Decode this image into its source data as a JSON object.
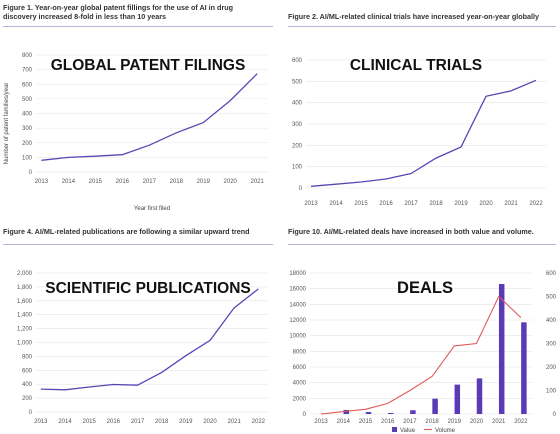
{
  "colors": {
    "line": "#5b45b5",
    "bar": "#5b3bb5",
    "volume": "#e05a5a",
    "grid": "#e4e4e4",
    "rule": "#b9b3d6"
  },
  "chart_data": [
    {
      "id": "patents",
      "type": "line",
      "caption": "Figure 1. Year-on-year global patent fillings for the use of AI in drug discovery increased 8-fold in less than 10 years",
      "overlay_title": "GLOBAL PATENT FILINGS",
      "xlabel": "Year first filed",
      "ylabel": "Number of patent families/year",
      "x": [
        "2013",
        "2014",
        "2015",
        "2016",
        "2017",
        "2018",
        "2019",
        "2020",
        "2021"
      ],
      "values": [
        80,
        100,
        108,
        118,
        183,
        268,
        338,
        488,
        672
      ],
      "ylim": [
        0,
        800
      ],
      "yticks": [
        0,
        100,
        200,
        300,
        400,
        500,
        600,
        700,
        800
      ],
      "grid": true
    },
    {
      "id": "trials",
      "type": "line",
      "caption": "Figure 2. AI/ML-related clinical trials have increased year-on-year globally",
      "overlay_title": "CLINICAL TRIALS",
      "xlabel": "",
      "ylabel": "",
      "x": [
        "2013",
        "2014",
        "2015",
        "2016",
        "2017",
        "2018",
        "2019",
        "2020",
        "2021",
        "2022"
      ],
      "values": [
        8,
        18,
        28,
        42,
        68,
        140,
        192,
        430,
        455,
        505
      ],
      "ylim": [
        0,
        600
      ],
      "yticks": [
        0,
        100,
        200,
        300,
        400,
        500,
        600
      ],
      "grid": true
    },
    {
      "id": "publications",
      "type": "line",
      "caption": "Figure 4. AI/ML-related publications are following a similar upward trend",
      "overlay_title": "SCIENTIFIC PUBLICATIONS",
      "xlabel": "",
      "ylabel": "",
      "x": [
        "2013",
        "2014",
        "2015",
        "2016",
        "2017",
        "2018",
        "2019",
        "2020",
        "2021",
        "2022"
      ],
      "values": [
        330,
        320,
        360,
        395,
        385,
        570,
        810,
        1030,
        1500,
        1770
      ],
      "ylim": [
        0,
        2000
      ],
      "yticks": [
        0,
        200,
        400,
        600,
        800,
        1000,
        1200,
        1400,
        1600,
        1800,
        2000
      ],
      "ytick_labels": [
        "0",
        "200",
        "400",
        "600",
        "800",
        "1,000",
        "1,200",
        "1,400",
        "1,600",
        "1,800",
        "2,000"
      ],
      "grid": true
    },
    {
      "id": "deals",
      "type": "bar+line",
      "caption": "Figure 10. AI/ML-related deals have increased in both value and volume.",
      "overlay_title": "DEALS",
      "x": [
        "2013",
        "2014",
        "2015",
        "2016",
        "2017",
        "2018",
        "2019",
        "2020",
        "2021",
        "2022"
      ],
      "series": [
        {
          "name": "Value",
          "type": "bar",
          "axis": "left",
          "values": [
            80,
            520,
            250,
            130,
            480,
            1950,
            3750,
            4550,
            16600,
            11700
          ]
        },
        {
          "name": "Volume",
          "type": "line",
          "axis": "right",
          "values": [
            0,
            10,
            20,
            45,
            100,
            160,
            290,
            300,
            500,
            410
          ]
        }
      ],
      "ylim_left": [
        0,
        18000
      ],
      "yticks_left": [
        0,
        2000,
        4000,
        6000,
        8000,
        10000,
        12000,
        14000,
        16000,
        18000
      ],
      "ylim_right": [
        0,
        600
      ],
      "yticks_right": [
        0,
        100,
        200,
        300,
        400,
        500,
        600
      ],
      "legend_position": "bottom",
      "grid": true
    }
  ]
}
